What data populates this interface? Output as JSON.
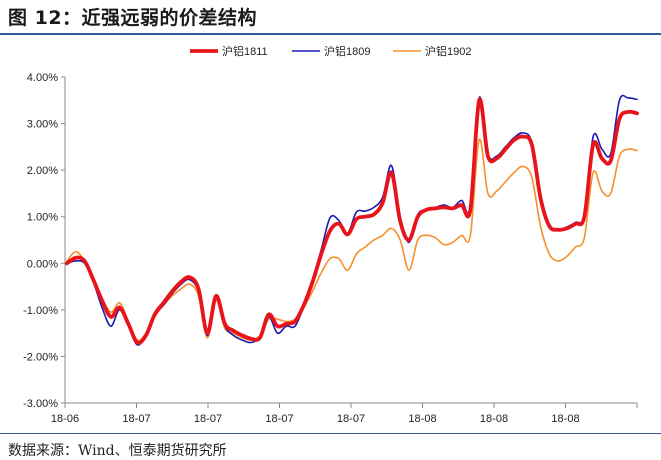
{
  "figure": {
    "title": "图 12：近强远弱的价差结构",
    "source": "数据来源：Wind、恒泰期货研究所"
  },
  "chart_data": {
    "type": "line",
    "ylim": [
      -3.0,
      4.0
    ],
    "yticks": [
      -3.0,
      -2.0,
      -1.0,
      0.0,
      1.0,
      2.0,
      3.0,
      4.0
    ],
    "ytick_labels": [
      "-3.00%",
      "-2.00%",
      "-1.00%",
      "0.00%",
      "1.00%",
      "2.00%",
      "3.00%",
      "4.00%"
    ],
    "xtick_labels": [
      "18-06",
      "18-07",
      "18-07",
      "18-07",
      "18-07",
      "18-08",
      "18-08",
      "18-08"
    ],
    "legend_position": "top",
    "series": [
      {
        "name": "沪铝1811",
        "color": "#e8141b",
        "values": [
          0.0,
          0.12,
          0.05,
          -0.35,
          -0.8,
          -1.15,
          -0.95,
          -1.3,
          -1.7,
          -1.55,
          -1.1,
          -0.85,
          -0.6,
          -0.4,
          -0.3,
          -0.55,
          -1.5,
          -0.7,
          -1.3,
          -1.45,
          -1.55,
          -1.62,
          -1.6,
          -1.1,
          -1.35,
          -1.3,
          -1.25,
          -0.9,
          -0.4,
          0.2,
          0.7,
          0.85,
          0.62,
          0.95,
          1.0,
          1.05,
          1.3,
          1.95,
          0.9,
          0.5,
          1.0,
          1.15,
          1.18,
          1.2,
          1.18,
          1.25,
          1.15,
          3.5,
          2.3,
          2.25,
          2.45,
          2.65,
          2.72,
          2.55,
          1.4,
          0.8,
          0.72,
          0.75,
          0.85,
          1.0,
          2.55,
          2.25,
          2.2,
          3.1,
          3.25,
          3.22
        ]
      },
      {
        "name": "沪铝1809",
        "color": "#1a1ab3",
        "values": [
          0.0,
          0.05,
          0.0,
          -0.4,
          -0.95,
          -1.35,
          -1.0,
          -1.35,
          -1.75,
          -1.55,
          -1.1,
          -0.9,
          -0.65,
          -0.45,
          -0.35,
          -0.62,
          -1.55,
          -0.75,
          -1.35,
          -1.55,
          -1.65,
          -1.7,
          -1.58,
          -1.15,
          -1.5,
          -1.35,
          -1.35,
          -0.92,
          -0.35,
          0.3,
          0.98,
          0.92,
          0.65,
          1.1,
          1.12,
          1.2,
          1.42,
          2.1,
          1.0,
          0.45,
          1.05,
          1.15,
          1.2,
          1.25,
          1.2,
          1.35,
          1.2,
          3.55,
          2.35,
          2.3,
          2.5,
          2.7,
          2.8,
          2.6,
          1.45,
          0.8,
          0.73,
          0.78,
          0.88,
          1.05,
          2.72,
          2.45,
          2.35,
          3.5,
          3.55,
          3.52
        ]
      },
      {
        "name": "沪铝1902",
        "color": "#f5902c",
        "values": [
          0.05,
          0.25,
          0.05,
          -0.3,
          -0.75,
          -1.05,
          -0.85,
          -1.25,
          -1.65,
          -1.5,
          -1.15,
          -0.9,
          -0.7,
          -0.55,
          -0.45,
          -0.7,
          -1.6,
          -0.8,
          -1.4,
          -1.5,
          -1.6,
          -1.65,
          -1.55,
          -1.2,
          -1.2,
          -1.25,
          -1.2,
          -0.95,
          -0.6,
          -0.2,
          0.1,
          0.1,
          -0.15,
          0.2,
          0.35,
          0.5,
          0.6,
          0.75,
          0.5,
          -0.15,
          0.5,
          0.6,
          0.55,
          0.4,
          0.45,
          0.6,
          0.6,
          2.65,
          1.5,
          1.55,
          1.75,
          1.95,
          2.08,
          1.85,
          0.8,
          0.2,
          0.05,
          0.15,
          0.35,
          0.55,
          1.95,
          1.55,
          1.5,
          2.3,
          2.45,
          2.42
        ]
      }
    ]
  }
}
